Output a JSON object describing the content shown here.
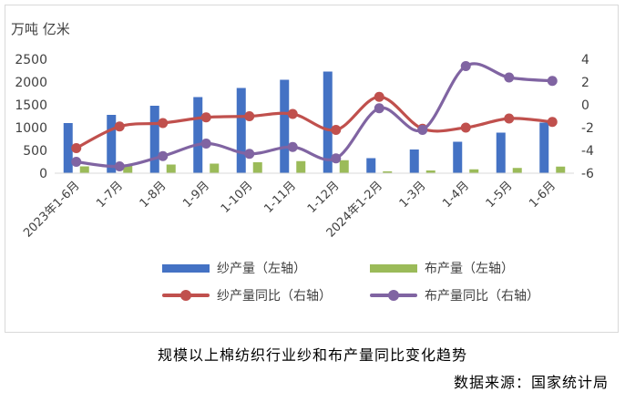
{
  "chart_data": {
    "type": "bar+line",
    "unit_label": "万吨 亿米",
    "categories": [
      "2023年1-6月",
      "1-7月",
      "1-8月",
      "1-9月",
      "1-10月",
      "1-11月",
      "1-12月",
      "2024年1-2月",
      "1-3月",
      "1-4月",
      "1-5月",
      "1-6月"
    ],
    "left_axis": {
      "ylim": [
        0,
        2500
      ],
      "ticks": [
        "0",
        "500",
        "1000",
        "1500",
        "2000",
        "2500"
      ]
    },
    "right_axis": {
      "ylim": [
        -6,
        4
      ],
      "ticks": [
        "-6",
        "-4",
        "-2",
        "0",
        "2",
        "4"
      ]
    },
    "series": [
      {
        "name": "纱产量（左轴）",
        "kind": "bar",
        "axis": "left",
        "color": "#4472C4",
        "values": [
          1100,
          1280,
          1480,
          1670,
          1870,
          2050,
          2230,
          330,
          520,
          690,
          890,
          1110
        ]
      },
      {
        "name": "布产量（左轴）",
        "kind": "bar",
        "axis": "left",
        "color": "#9BBB59",
        "values": [
          150,
          170,
          190,
          210,
          240,
          265,
          285,
          40,
          60,
          85,
          115,
          145
        ]
      },
      {
        "name": "纱产量同比（右轴）",
        "kind": "line",
        "axis": "right",
        "color": "#C0504D",
        "values": [
          -3.8,
          -1.9,
          -1.6,
          -1.1,
          -1.0,
          -0.8,
          -2.2,
          0.7,
          -2.1,
          -2.0,
          -1.2,
          -1.5
        ]
      },
      {
        "name": "布产量同比（右轴）",
        "kind": "line",
        "axis": "right",
        "color": "#8064A2",
        "values": [
          -5.0,
          -5.4,
          -4.5,
          -3.4,
          -4.3,
          -3.7,
          -4.7,
          -0.3,
          -2.2,
          3.4,
          2.4,
          2.1
        ]
      }
    ],
    "legend_position": "bottom",
    "grid": false
  },
  "caption": "规模以上棉纺织行业纱和布产量同比变化趋势",
  "source": "数据来源：国家统计局"
}
